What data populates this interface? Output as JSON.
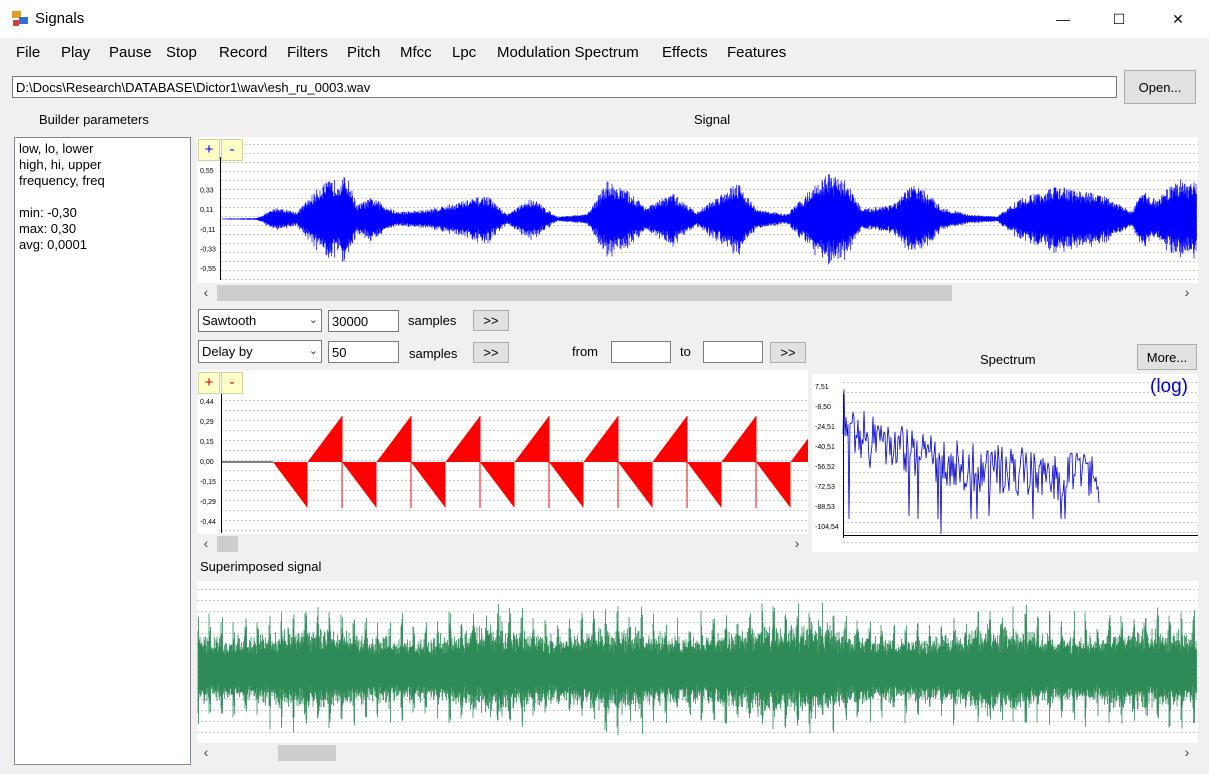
{
  "window": {
    "title": "Signals",
    "minimize_glyph": "—",
    "maximize_glyph": "☐",
    "close_glyph": "✕"
  },
  "menu": [
    "File",
    "Play",
    "Pause",
    "Stop",
    "Record",
    "Filters",
    "Pitch",
    "Mfcc",
    "Lpc",
    "Modulation Spectrum",
    "Effects",
    "Features"
  ],
  "file_path": "D:\\Docs\\Research\\DATABASE\\Dictor1\\wav\\esh_ru_0003.wav",
  "open_button": "Open...",
  "builder": {
    "heading": "Builder parameters",
    "lines": [
      "low, lo, lower",
      "high, hi, upper",
      "frequency, freq",
      "",
      "min: -0,30",
      "max: 0,30",
      "avg: 0,0001"
    ]
  },
  "signal_panel": {
    "heading": "Signal",
    "zoom_in": "+",
    "zoom_out": "-",
    "y_ticks": [
      "0,55",
      "0,33",
      "0,11",
      "-0,11",
      "-0,33",
      "-0,55"
    ],
    "color": "#0000ff"
  },
  "generator": {
    "waveform_select": "Sawtooth",
    "samples_value": "30000",
    "samples_label": "samples",
    "apply_label": ">>",
    "delay_select": "Delay by",
    "delay_value": "50",
    "delay_samples_label": "samples",
    "delay_apply_label": ">>",
    "from_label": "from",
    "to_label": "to",
    "from_value": "",
    "to_value": "",
    "range_apply_label": ">>"
  },
  "generated_panel": {
    "zoom_in": "+",
    "zoom_out": "-",
    "y_ticks": [
      "0,44",
      "0,29",
      "0,15",
      "0,00",
      "-0,15",
      "-0,29",
      "-0,44"
    ],
    "color": "#ff0000"
  },
  "spectrum_panel": {
    "heading": "Spectrum",
    "more_button": "More...",
    "scale_label": "(log)",
    "y_ticks": [
      "7,51",
      "-8,50",
      "-24,51",
      "-40,51",
      "-56,52",
      "-72,53",
      "-88,53",
      "-104,54"
    ],
    "color": "#0000cc"
  },
  "superimposed_panel": {
    "heading": "Superimposed signal",
    "color": "#2e8b57"
  },
  "icons": {
    "scroll_left": "‹",
    "scroll_right": "›",
    "dropdown": "⌄"
  }
}
